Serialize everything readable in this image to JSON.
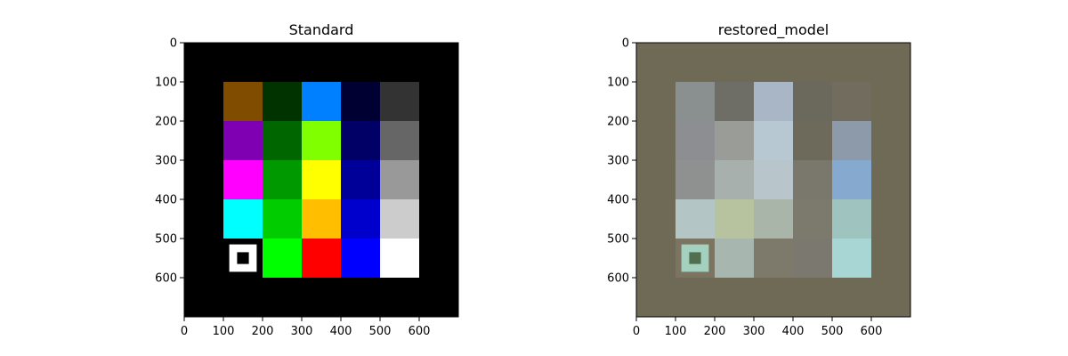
{
  "chart_data": [
    {
      "type": "heatmap",
      "title": "Standard",
      "xlim": [
        0,
        700
      ],
      "ylim": [
        700,
        0
      ],
      "xticks": [
        0,
        100,
        200,
        300,
        400,
        500,
        600
      ],
      "yticks": [
        0,
        100,
        200,
        300,
        400,
        500,
        600
      ],
      "background": "#000000",
      "cells": [
        {
          "x": 100,
          "y": 100,
          "w": 100,
          "h": 100,
          "color": "#7f4c00"
        },
        {
          "x": 200,
          "y": 100,
          "w": 100,
          "h": 100,
          "color": "#003300"
        },
        {
          "x": 300,
          "y": 100,
          "w": 100,
          "h": 100,
          "color": "#007fff"
        },
        {
          "x": 400,
          "y": 100,
          "w": 100,
          "h": 100,
          "color": "#000033"
        },
        {
          "x": 500,
          "y": 100,
          "w": 100,
          "h": 100,
          "color": "#333333"
        },
        {
          "x": 100,
          "y": 200,
          "w": 100,
          "h": 100,
          "color": "#7f00b2"
        },
        {
          "x": 200,
          "y": 200,
          "w": 100,
          "h": 100,
          "color": "#006600"
        },
        {
          "x": 300,
          "y": 200,
          "w": 100,
          "h": 100,
          "color": "#7fff00"
        },
        {
          "x": 400,
          "y": 200,
          "w": 100,
          "h": 100,
          "color": "#000066"
        },
        {
          "x": 500,
          "y": 200,
          "w": 100,
          "h": 100,
          "color": "#666666"
        },
        {
          "x": 100,
          "y": 300,
          "w": 100,
          "h": 100,
          "color": "#ff00ff"
        },
        {
          "x": 200,
          "y": 300,
          "w": 100,
          "h": 100,
          "color": "#009900"
        },
        {
          "x": 300,
          "y": 300,
          "w": 100,
          "h": 100,
          "color": "#ffff00"
        },
        {
          "x": 400,
          "y": 300,
          "w": 100,
          "h": 100,
          "color": "#000099"
        },
        {
          "x": 500,
          "y": 300,
          "w": 100,
          "h": 100,
          "color": "#999999"
        },
        {
          "x": 100,
          "y": 400,
          "w": 100,
          "h": 100,
          "color": "#00ffff"
        },
        {
          "x": 200,
          "y": 400,
          "w": 100,
          "h": 100,
          "color": "#00cc00"
        },
        {
          "x": 300,
          "y": 400,
          "w": 100,
          "h": 100,
          "color": "#ffbf00"
        },
        {
          "x": 400,
          "y": 400,
          "w": 100,
          "h": 100,
          "color": "#0000cc"
        },
        {
          "x": 500,
          "y": 400,
          "w": 100,
          "h": 100,
          "color": "#cccccc"
        },
        {
          "x": 200,
          "y": 500,
          "w": 100,
          "h": 100,
          "color": "#00ff00"
        },
        {
          "x": 300,
          "y": 500,
          "w": 100,
          "h": 100,
          "color": "#ff0000"
        },
        {
          "x": 400,
          "y": 500,
          "w": 100,
          "h": 100,
          "color": "#0000ff"
        },
        {
          "x": 500,
          "y": 500,
          "w": 100,
          "h": 100,
          "color": "#ffffff"
        }
      ],
      "marker": {
        "outer": [
          115,
          515,
          70,
          70
        ],
        "outer_color": "#ffffff",
        "inner": [
          135,
          535,
          30,
          30
        ],
        "inner_color": "#000000"
      }
    },
    {
      "type": "heatmap",
      "title": "restored_model",
      "xlim": [
        0,
        700
      ],
      "ylim": [
        700,
        0
      ],
      "xticks": [
        0,
        100,
        200,
        300,
        400,
        500,
        600
      ],
      "yticks": [
        0,
        100,
        200,
        300,
        400,
        500,
        600
      ],
      "background": "#6e6a55",
      "cells": [
        {
          "x": 100,
          "y": 100,
          "w": 100,
          "h": 100,
          "color": "#8a8f8f"
        },
        {
          "x": 200,
          "y": 100,
          "w": 100,
          "h": 100,
          "color": "#6e6e66"
        },
        {
          "x": 300,
          "y": 100,
          "w": 100,
          "h": 100,
          "color": "#a9b6c6"
        },
        {
          "x": 400,
          "y": 100,
          "w": 100,
          "h": 100,
          "color": "#6b685c"
        },
        {
          "x": 500,
          "y": 100,
          "w": 100,
          "h": 100,
          "color": "#716c5e"
        },
        {
          "x": 100,
          "y": 200,
          "w": 100,
          "h": 100,
          "color": "#8c8e91"
        },
        {
          "x": 200,
          "y": 200,
          "w": 100,
          "h": 100,
          "color": "#9a9d97"
        },
        {
          "x": 300,
          "y": 200,
          "w": 100,
          "h": 100,
          "color": "#b8c8d2"
        },
        {
          "x": 400,
          "y": 200,
          "w": 100,
          "h": 100,
          "color": "#6d6a5c"
        },
        {
          "x": 500,
          "y": 200,
          "w": 100,
          "h": 100,
          "color": "#8c9aaa"
        },
        {
          "x": 100,
          "y": 300,
          "w": 100,
          "h": 100,
          "color": "#8f9191"
        },
        {
          "x": 200,
          "y": 300,
          "w": 100,
          "h": 100,
          "color": "#a8b0ad"
        },
        {
          "x": 300,
          "y": 300,
          "w": 100,
          "h": 100,
          "color": "#b8c6cb"
        },
        {
          "x": 400,
          "y": 300,
          "w": 100,
          "h": 100,
          "color": "#7a786c"
        },
        {
          "x": 500,
          "y": 300,
          "w": 100,
          "h": 100,
          "color": "#86aacf"
        },
        {
          "x": 100,
          "y": 400,
          "w": 100,
          "h": 100,
          "color": "#b3c6c5"
        },
        {
          "x": 200,
          "y": 400,
          "w": 100,
          "h": 100,
          "color": "#b7c29e"
        },
        {
          "x": 300,
          "y": 400,
          "w": 100,
          "h": 100,
          "color": "#a9b5a8"
        },
        {
          "x": 400,
          "y": 400,
          "w": 100,
          "h": 100,
          "color": "#7b7a6d"
        },
        {
          "x": 500,
          "y": 400,
          "w": 100,
          "h": 100,
          "color": "#9fc4c0"
        },
        {
          "x": 100,
          "y": 500,
          "w": 100,
          "h": 100,
          "color": "#7a7461"
        },
        {
          "x": 200,
          "y": 500,
          "w": 100,
          "h": 100,
          "color": "#a8b6b0"
        },
        {
          "x": 300,
          "y": 500,
          "w": 100,
          "h": 100,
          "color": "#7e7a6b"
        },
        {
          "x": 400,
          "y": 500,
          "w": 100,
          "h": 100,
          "color": "#7b796f"
        },
        {
          "x": 500,
          "y": 500,
          "w": 100,
          "h": 100,
          "color": "#a8d6d4"
        }
      ],
      "marker": {
        "outer": [
          115,
          515,
          70,
          70
        ],
        "outer_color": "#a4d0c0",
        "inner": [
          135,
          535,
          30,
          30
        ],
        "inner_color": "#4f6f4e"
      }
    }
  ],
  "panels_layout": [
    "left",
    "right"
  ]
}
